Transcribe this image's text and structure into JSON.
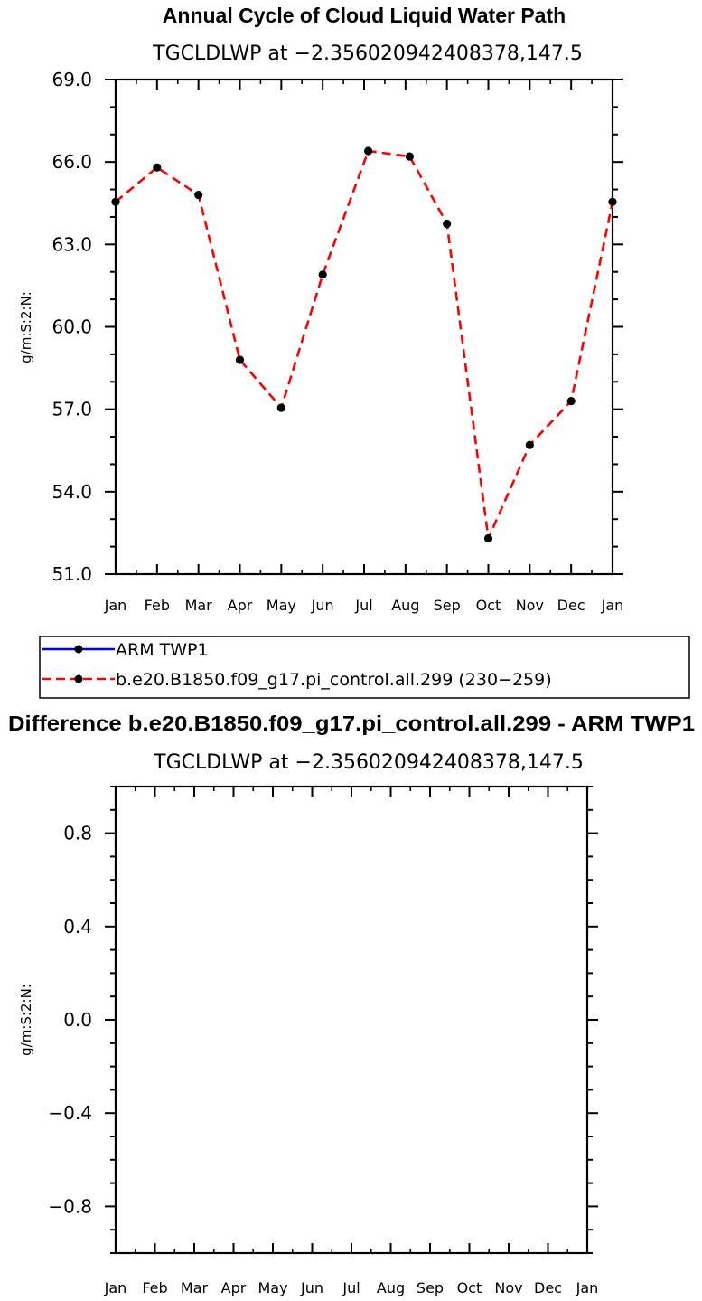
{
  "chart_data": [
    {
      "type": "line",
      "title": "Annual Cycle of Cloud Liquid Water Path",
      "subtitle": "TGCLDLWP at −2.356020942408378,147.5",
      "ylabel": "g/m:S:2:N:",
      "categories": [
        "Jan",
        "Feb",
        "Mar",
        "Apr",
        "May",
        "Jun",
        "Jul",
        "Aug",
        "Sep",
        "Oct",
        "Nov",
        "Dec",
        "Jan"
      ],
      "ylim": [
        51.0,
        69.0
      ],
      "yticks": [
        51.0,
        54.0,
        57.0,
        60.0,
        63.0,
        66.0,
        69.0
      ],
      "ytick_labels": [
        "51.0",
        "54.0",
        "57.0",
        "60.0",
        "63.0",
        "66.0",
        "69.0"
      ],
      "legend": {
        "placement": "below",
        "entries": [
          {
            "name": "ARM TWP1",
            "color": "#0000ff",
            "dash": "solid"
          },
          {
            "name": "b.e20.B1850.f09_g17.pi_control.all.299 (230−259)",
            "color": "#ff0000",
            "dash": "dashed"
          }
        ]
      },
      "series": [
        {
          "name": "b.e20.B1850.f09_g17.pi_control.all.299 (230−259)",
          "color": "#ff0000",
          "dash": "dashed",
          "x": [
            0,
            1,
            2,
            3,
            4,
            5,
            6.1,
            7.1,
            8,
            9,
            10,
            11,
            12
          ],
          "values": [
            64.55,
            65.8,
            64.8,
            58.8,
            57.05,
            61.9,
            66.4,
            66.2,
            63.75,
            52.3,
            55.7,
            57.3,
            64.55
          ]
        }
      ]
    },
    {
      "type": "line",
      "title": "Difference b.e20.B1850.f09_g17.pi_control.all.299 - ARM TWP1",
      "subtitle": "TGCLDLWP at −2.356020942408378,147.5",
      "ylabel": "g/m:S:2:N:",
      "categories": [
        "Jan",
        "Feb",
        "Mar",
        "Apr",
        "May",
        "Jun",
        "Jul",
        "Aug",
        "Sep",
        "Oct",
        "Nov",
        "Dec",
        "Jan"
      ],
      "ylim": [
        -1.0,
        1.0
      ],
      "yticks": [
        -0.8,
        -0.4,
        0.0,
        0.4,
        0.8
      ],
      "ytick_labels": [
        "−0.8",
        "−0.4",
        "0.0",
        "0.4",
        "0.8"
      ],
      "series": []
    }
  ]
}
